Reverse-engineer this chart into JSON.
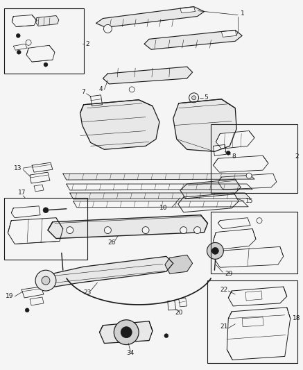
{
  "bg_color": "#f5f5f5",
  "line_color": "#1a1a1a",
  "fig_width": 4.37,
  "fig_height": 5.33,
  "dpi": 100
}
